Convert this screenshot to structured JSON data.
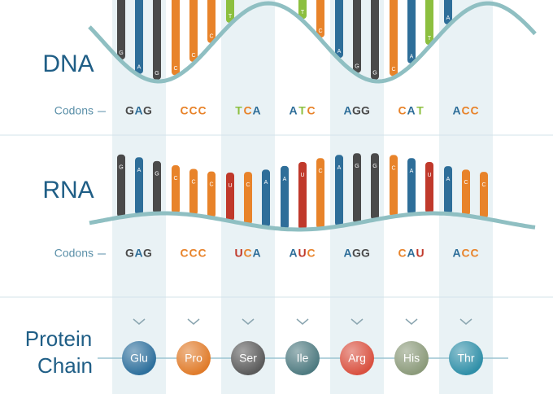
{
  "dna": {
    "label": "DNA",
    "codons_label": "Codons",
    "codons": [
      [
        "G",
        "A",
        "G"
      ],
      [
        "C",
        "C",
        "C"
      ],
      [
        "T",
        "C",
        "A"
      ],
      [
        "A",
        "T",
        "C"
      ],
      [
        "A",
        "G",
        "G"
      ],
      [
        "C",
        "A",
        "T"
      ],
      [
        "A",
        "C",
        "C"
      ]
    ]
  },
  "rna": {
    "label": "RNA",
    "codons_label": "Codons",
    "codons": [
      [
        "G",
        "A",
        "G"
      ],
      [
        "C",
        "C",
        "C"
      ],
      [
        "U",
        "C",
        "A"
      ],
      [
        "A",
        "U",
        "C"
      ],
      [
        "A",
        "G",
        "G"
      ],
      [
        "C",
        "A",
        "U"
      ],
      [
        "A",
        "C",
        "C"
      ]
    ]
  },
  "protein": {
    "label": [
      "Protein",
      "Chain"
    ],
    "amino_acids": [
      "Glu",
      "Pro",
      "Ser",
      "Ile",
      "Arg",
      "His",
      "Thr"
    ]
  }
}
